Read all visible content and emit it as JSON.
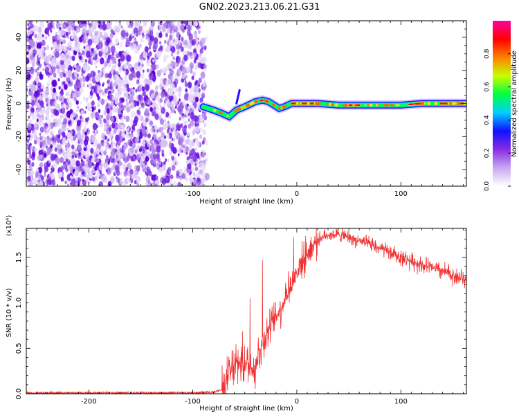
{
  "title": "GN02.2023.213.06.21.G31",
  "chart_data": [
    {
      "type": "heatmap",
      "title": "",
      "xlabel": "Height of straight line (km)",
      "ylabel": "Frequency (Hz)",
      "xlim": [
        -260,
        163
      ],
      "ylim": [
        -50,
        50
      ],
      "x_ticks": [
        -200,
        -100,
        0,
        100
      ],
      "y_ticks": [
        -40,
        -20,
        0,
        20,
        40
      ],
      "noise_region_x": [
        -260,
        -88
      ],
      "ridge": {
        "x": [
          -90,
          -80,
          -72,
          -65,
          -58,
          -50,
          -40,
          -33,
          -27,
          -22,
          -17,
          -12,
          -5,
          0,
          20,
          40,
          60,
          80,
          100,
          120,
          140,
          163
        ],
        "freq": [
          -2,
          -4,
          -6,
          -8,
          -4,
          -2,
          1,
          2,
          1,
          -1,
          -3,
          -2,
          0,
          0,
          0,
          -1,
          -1,
          -1,
          -1,
          0,
          0,
          0
        ]
      },
      "colorbar": {
        "label": "Normalized spectral amplitude",
        "range": [
          0,
          1
        ],
        "ticks": [
          0.0,
          0.2,
          0.4,
          0.6,
          0.8
        ],
        "colors": [
          "#ffffff",
          "#c8a8f0",
          "#8a2be2",
          "#1010ff",
          "#00d0ff",
          "#00ff40",
          "#c8ff00",
          "#ff8000",
          "#ff0000",
          "#ff00a0"
        ]
      }
    },
    {
      "type": "line",
      "title": "",
      "xlabel": "Height of straight line (km)",
      "ylabel": "SNR (10 * v/v)",
      "y_exponent_label": "(x10⁴)",
      "xlim": [
        -260,
        163
      ],
      "ylim": [
        0,
        1.82
      ],
      "x_ticks": [
        -200,
        -100,
        0,
        100
      ],
      "y_ticks": [
        0.0,
        0.5,
        1.0,
        1.5
      ],
      "series": [
        {
          "color": "#f03030",
          "x": [
            -260,
            -200,
            -150,
            -100,
            -80,
            -70,
            -65,
            -60,
            -55,
            -50,
            -45,
            -40,
            -35,
            -32,
            -30,
            -25,
            -20,
            -15,
            -10,
            -5,
            0,
            10,
            20,
            30,
            40,
            50,
            60,
            80,
            100,
            120,
            140,
            163
          ],
          "values": [
            0.01,
            0.01,
            0.01,
            0.01,
            0.02,
            0.05,
            0.2,
            0.3,
            0.35,
            0.35,
            0.3,
            0.3,
            0.5,
            0.55,
            0.65,
            0.75,
            0.85,
            0.95,
            1.1,
            1.2,
            1.35,
            1.55,
            1.7,
            1.75,
            1.75,
            1.72,
            1.68,
            1.6,
            1.5,
            1.42,
            1.35,
            1.25
          ]
        }
      ]
    }
  ]
}
